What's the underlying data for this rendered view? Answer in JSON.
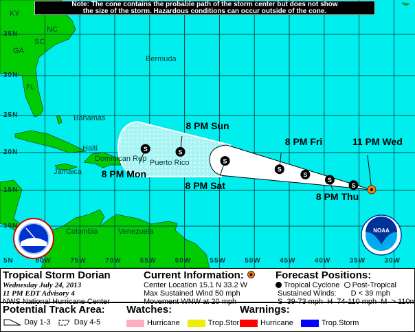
{
  "note": {
    "line1": "Note: The cone contains the probable path of the storm center but does not show",
    "line2": "the size of the storm. Hazardous conditions can occur outside of the cone."
  },
  "map": {
    "lat_labels": [
      "35N",
      "30N",
      "25N",
      "20N",
      "15N",
      "10N",
      "5N"
    ],
    "lon_labels": [
      "80W",
      "75W",
      "70W",
      "65W",
      "60W",
      "55W",
      "50W",
      "45W",
      "40W",
      "35W",
      "30W"
    ],
    "places": {
      "ky": "KY",
      "nc": "NC",
      "sc": "SC",
      "ga": "GA",
      "fl": "FL",
      "bermuda": "Bermuda",
      "bahamas": "Bahamas",
      "haiti": "Haiti",
      "dominican": "Dominican Rep",
      "puerto_rico": "Puerto Rico",
      "jamaica": "Jamaica",
      "colombia": "Colombia",
      "venezuela": "Venezuela"
    },
    "current_position": {
      "lat": 15.1,
      "lon": 33.2,
      "label": "11 PM Wed"
    },
    "forecast_points": [
      {
        "lat": 15.7,
        "lon": 35.8,
        "type": "S",
        "label": ""
      },
      {
        "lat": 16.4,
        "lon": 39.2,
        "type": "S",
        "label": "8 PM Thu"
      },
      {
        "lat": 17.1,
        "lon": 42.7,
        "type": "S",
        "label": ""
      },
      {
        "lat": 17.8,
        "lon": 46.4,
        "type": "S",
        "label": "8 PM Fri"
      },
      {
        "lat": 18.9,
        "lon": 54.2,
        "type": "S",
        "label": "8 PM Sat"
      },
      {
        "lat": 20.1,
        "lon": 60.6,
        "type": "S",
        "label": "8 PM Sun"
      },
      {
        "lat": 20.5,
        "lon": 65.6,
        "type": "S",
        "label": "8 PM Mon"
      }
    ],
    "logos": {
      "nws": "National Weather Service",
      "noaa": "NOAA"
    },
    "colors": {
      "ocean": "#00eeee",
      "land": "#00cc00",
      "current": "#ff8000",
      "cone": "#ffffff"
    }
  },
  "legend": {
    "storm_name": "Tropical Storm Dorian",
    "date": "Wednesday July 24, 2013",
    "advisory": "11 PM EDT Advisory 4",
    "agency": "NWS National Hurricane Center",
    "current_title": "Current Information:",
    "center_location": "Center Location 15.1 N  33.2 W",
    "max_wind": "Max Sustained Wind  50 mph",
    "movement": "Movement WNW at  20 mph",
    "forecast_title": "Forecast Positions:",
    "tropical_cyclone": "Tropical Cyclone",
    "post_tropical": "Post-Tropical",
    "sustained_winds": "Sustained Winds:",
    "d_scale": "D  < 39 mph",
    "shm_scale": "S  39-73 mph  H  74-110 mph  M  > 110mph",
    "track_title": "Potential Track Area:",
    "day13": "Day 1-3",
    "day45": "Day 4-5",
    "watches_title": "Watches:",
    "watch_hurricane": "Hurricane",
    "watch_ts": "Trop.Storm",
    "warnings_title": "Warnings:",
    "warn_hurricane": "Hurricane",
    "warn_ts": "Trop.Storm",
    "colors": {
      "watch_hurricane": "#ffaec0",
      "watch_ts": "#eeee00",
      "warn_hurricane": "#ff0000",
      "warn_ts": "#0000ff"
    }
  }
}
